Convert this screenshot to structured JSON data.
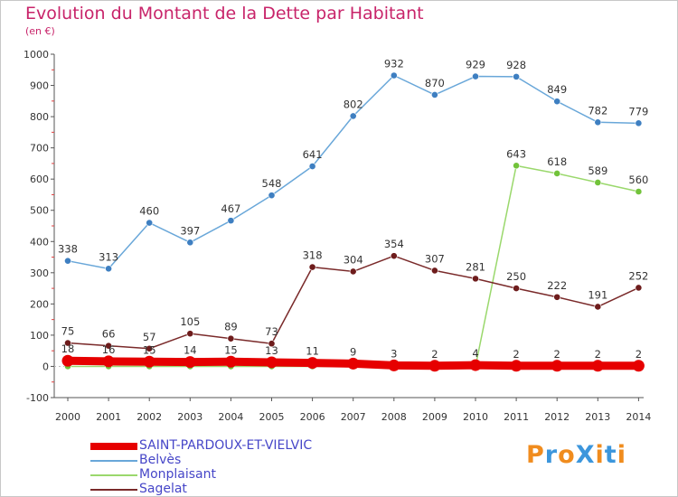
{
  "chart_data": {
    "type": "line",
    "title": "Evolution du Montant de la Dette par Habitant",
    "unit": "(en €)",
    "x": [
      "2000",
      "2001",
      "2002",
      "2003",
      "2004",
      "2005",
      "2006",
      "2007",
      "2008",
      "2009",
      "2010",
      "2011",
      "2012",
      "2013",
      "2014"
    ],
    "yticks": [
      -100,
      0,
      100,
      200,
      300,
      400,
      500,
      600,
      700,
      800,
      900,
      1000
    ],
    "ylim": [
      -100,
      1000
    ],
    "grid": false,
    "legend_position": "bottom-left",
    "series": [
      {
        "name": "SAINT-PARDOUX-ET-VIELVIC",
        "color": "#e60000",
        "values": [
          18,
          16,
          15,
          14,
          15,
          13,
          11,
          9,
          3,
          2,
          4,
          2,
          2,
          2,
          2
        ],
        "labels": [
          "18",
          "16",
          "15",
          "14",
          "15",
          "13",
          "11",
          "9",
          "3",
          "2",
          "4",
          "2",
          "2",
          "2",
          "2"
        ]
      },
      {
        "name": "Belvès",
        "color": "#69a7d9",
        "marker_color": "#3e7fc1",
        "values": [
          338,
          313,
          460,
          397,
          467,
          548,
          641,
          802,
          932,
          870,
          929,
          928,
          849,
          782,
          779
        ],
        "labels": [
          "338",
          "313",
          "460",
          "397",
          "467",
          "548",
          "641",
          "802",
          "932",
          "870",
          "929",
          "928",
          "849",
          "782",
          "779"
        ]
      },
      {
        "name": "Monplaisant",
        "color": "#9ad86c",
        "marker_color": "#72c33a",
        "values": [
          0,
          0,
          0,
          0,
          0,
          0,
          0,
          0,
          0,
          0,
          0,
          643,
          618,
          589,
          560
        ],
        "labels": [
          "",
          "",
          "",
          "",
          "",
          "",
          "",
          "",
          "",
          "",
          "",
          "643",
          "618",
          "589",
          "560"
        ]
      },
      {
        "name": "Sagelat",
        "color": "#7a2a2a",
        "marker_color": "#6e1c1c",
        "values": [
          75,
          66,
          57,
          105,
          89,
          73,
          318,
          304,
          354,
          307,
          281,
          250,
          222,
          191,
          252
        ],
        "labels": [
          "75",
          "66",
          "57",
          "105",
          "89",
          "73",
          "318",
          "304",
          "354",
          "307",
          "281",
          "250",
          "222",
          "191",
          "252"
        ]
      }
    ]
  },
  "logo": {
    "text": "ProXiti",
    "colors": [
      "#f08c1e",
      "#3c96dc",
      "#f08c1e",
      "#3c96dc",
      "#f08c1e",
      "#3c96dc",
      "#f08c1e"
    ]
  },
  "colors": {
    "title": "#c8246a",
    "legend_text": "#4646c8",
    "axis": "#555555"
  }
}
